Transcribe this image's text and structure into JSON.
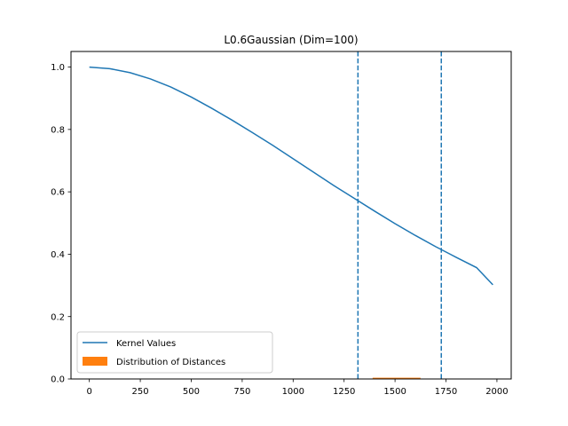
{
  "chart_data": {
    "type": "line",
    "title": "L0.6Gaussian (Dim=100)",
    "xlabel": "",
    "ylabel": "",
    "xlim": [
      -90,
      2070
    ],
    "ylim": [
      0,
      1.05
    ],
    "x_ticks": [
      0,
      250,
      500,
      750,
      1000,
      1250,
      1500,
      1750,
      2000
    ],
    "x_tick_labels": [
      "0",
      "250",
      "500",
      "750",
      "1000",
      "1250",
      "1500",
      "1750",
      "2000"
    ],
    "y_ticks": [
      0.0,
      0.2,
      0.4,
      0.6,
      0.8,
      1.0
    ],
    "y_tick_labels": [
      "0.0",
      "0.2",
      "0.4",
      "0.6",
      "0.8",
      "1.0"
    ],
    "grid": false,
    "legend_position": "lower-left",
    "series": [
      {
        "name": "Kernel Values",
        "color": "#1f77b4",
        "x": [
          0,
          100,
          200,
          300,
          400,
          500,
          600,
          700,
          800,
          900,
          1000,
          1100,
          1200,
          1300,
          1400,
          1500,
          1600,
          1700,
          1800,
          1900,
          1980
        ],
        "y": [
          1.0,
          0.995,
          0.982,
          0.962,
          0.936,
          0.904,
          0.868,
          0.83,
          0.79,
          0.749,
          0.706,
          0.663,
          0.62,
          0.579,
          0.538,
          0.498,
          0.46,
          0.424,
          0.39,
          0.357,
          0.302
        ]
      }
    ],
    "histogram": {
      "name": "Distribution of Distances",
      "color": "#ff7f0e",
      "x_range": [
        1390,
        1625
      ],
      "height": 0.004
    },
    "vlines": [
      {
        "x": 1318,
        "color": "#1f77b4",
        "style": "dashed"
      },
      {
        "x": 1727,
        "color": "#1f77b4",
        "style": "dashed"
      }
    ]
  }
}
